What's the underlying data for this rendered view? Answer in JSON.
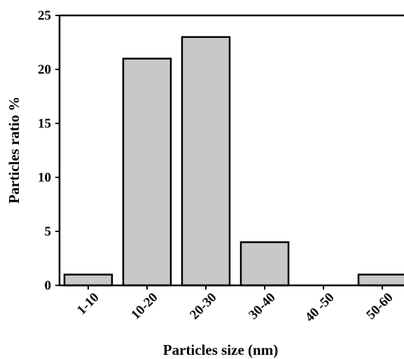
{
  "chart_data": {
    "type": "bar",
    "title": "",
    "xlabel": "Particles size (nm)",
    "ylabel": "Particles ratio %",
    "categories": [
      "1-10",
      "10-20",
      "20-30",
      "30-40",
      "40 -50",
      "50-60"
    ],
    "values": [
      1,
      21,
      23,
      4,
      0,
      1
    ],
    "ylim": [
      0,
      25
    ],
    "yticks": [
      0,
      5,
      10,
      15,
      20,
      25
    ],
    "bar_color": "#c8c8c8",
    "grid": false,
    "legend": "none"
  }
}
